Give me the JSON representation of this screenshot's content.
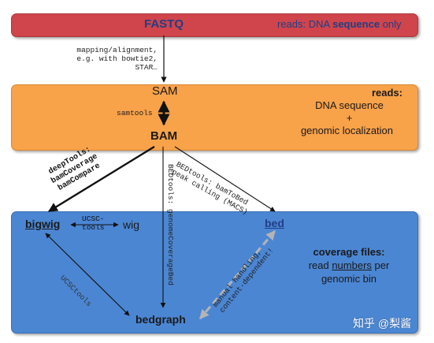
{
  "colors": {
    "fastq_box": "#d0444b",
    "fastq_box_border": "#a8383e",
    "sam_box": "#f8a24a",
    "sam_box_border": "#d98830",
    "coverage_box": "#4b86d3",
    "coverage_box_border": "#3b6fb5",
    "fastq_text": "#1f3f86",
    "dark_text": "#1a1a1a",
    "bed_text": "#1f3f86",
    "watermark": "#ffffff"
  },
  "fastq": {
    "label": "FASTQ",
    "desc_prefix": "reads: DNA ",
    "desc_bold": "sequence",
    "desc_suffix": " only"
  },
  "mapping": {
    "line1": "mapping/alignment,",
    "line2": "e.g. with bowtie2,",
    "line3": "STAR…"
  },
  "sam_box": {
    "sam": "SAM",
    "samtools": "samtools",
    "bam": "BAM",
    "reads_label": "reads:",
    "line1": "DNA sequence",
    "plus": "+",
    "line2": "genomic localization"
  },
  "deeptools": {
    "line1": "deepTools:",
    "line2": "bamCoverage",
    "line3": "bamCompare"
  },
  "bedtools_genomecov": "BEDtools: genomeCoverageBed",
  "bedtools_bed": {
    "line1": "BEDtools: bamToBed",
    "line2": "peak calling (MACS)"
  },
  "coverage_box": {
    "bigwig": "bigwig",
    "ucsc_line1": "UCSC-",
    "ucsc_line2": "tools",
    "wig": "wig",
    "bed": "bed",
    "ucsctools_diag": "UCSCtools",
    "bedgraph": "bedgraph",
    "manual_line1": "manual handling,",
    "manual_line2": "content-dependent!",
    "title": "coverage files:",
    "read_prefix": "read ",
    "numbers": "numbers",
    "read_suffix": " per",
    "genomic_bin": "genomic bin"
  },
  "watermark": "知乎 @梨酱"
}
